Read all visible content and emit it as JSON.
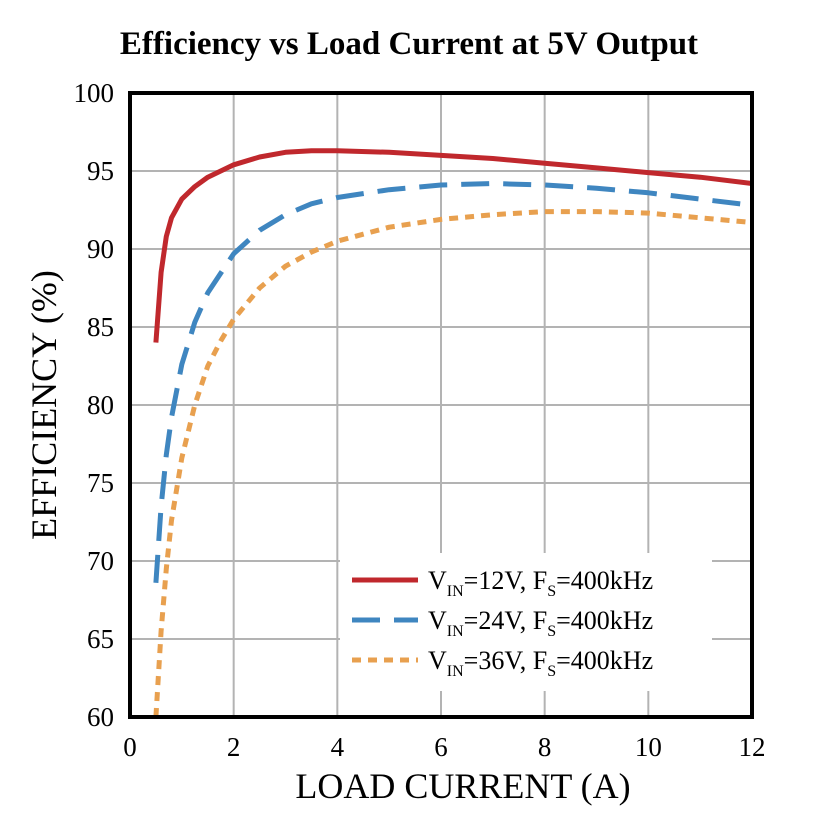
{
  "chart_data": {
    "type": "line",
    "title": "Efficiency vs Load Current at 5V Output",
    "xlabel": "LOAD CURRENT (A)",
    "ylabel": "EFFICIENCY (%)",
    "xlim": [
      0,
      12
    ],
    "ylim": [
      60,
      100
    ],
    "xticks": [
      0,
      2,
      4,
      6,
      8,
      10,
      12
    ],
    "yticks": [
      60,
      65,
      70,
      75,
      80,
      85,
      90,
      95,
      100
    ],
    "grid": true,
    "legend_position": "bottom-right",
    "series": [
      {
        "name": "VIN=12V, FS=400kHz",
        "label_parts": [
          "V",
          "IN",
          "=12V, F",
          "S",
          "=400kHz"
        ],
        "color": "#C0282D",
        "style": "solid",
        "x": [
          0.5,
          0.6,
          0.7,
          0.8,
          1.0,
          1.25,
          1.5,
          2.0,
          2.5,
          3.0,
          3.5,
          4.0,
          5.0,
          6.0,
          7.0,
          8.0,
          9.0,
          10.0,
          11.0,
          12.0
        ],
        "y": [
          84.0,
          88.5,
          90.8,
          92.0,
          93.2,
          94.0,
          94.6,
          95.4,
          95.9,
          96.2,
          96.3,
          96.3,
          96.2,
          96.0,
          95.8,
          95.5,
          95.2,
          94.9,
          94.6,
          94.2
        ]
      },
      {
        "name": "VIN=24V, FS=400kHz",
        "label_parts": [
          "V",
          "IN",
          "=24V, F",
          "S",
          "=400kHz"
        ],
        "color": "#3F86C0",
        "style": "dashed",
        "x": [
          0.5,
          0.6,
          0.7,
          0.8,
          1.0,
          1.25,
          1.5,
          2.0,
          2.5,
          3.0,
          3.5,
          4.0,
          5.0,
          6.0,
          7.0,
          8.0,
          9.0,
          10.0,
          11.0,
          12.0
        ],
        "y": [
          68.6,
          73.5,
          76.8,
          79.2,
          82.6,
          85.3,
          87.2,
          89.7,
          91.2,
          92.2,
          92.9,
          93.3,
          93.8,
          94.1,
          94.2,
          94.1,
          93.9,
          93.6,
          93.2,
          92.8
        ]
      },
      {
        "name": "VIN=36V, FS=400kHz",
        "label_parts": [
          "V",
          "IN",
          "=36V, F",
          "S",
          "=400kHz"
        ],
        "color": "#E8A04F",
        "style": "dotted",
        "x": [
          0.5,
          0.6,
          0.7,
          0.8,
          1.0,
          1.25,
          1.5,
          1.75,
          2.0,
          2.5,
          3.0,
          3.5,
          4.0,
          5.0,
          6.0,
          7.0,
          8.0,
          9.0,
          10.0,
          11.0,
          12.0
        ],
        "y": [
          60.0,
          65.5,
          69.5,
          72.6,
          76.6,
          80.0,
          82.5,
          84.1,
          85.5,
          87.5,
          88.9,
          89.8,
          90.5,
          91.4,
          91.9,
          92.2,
          92.4,
          92.4,
          92.3,
          92.0,
          91.7
        ]
      }
    ]
  }
}
